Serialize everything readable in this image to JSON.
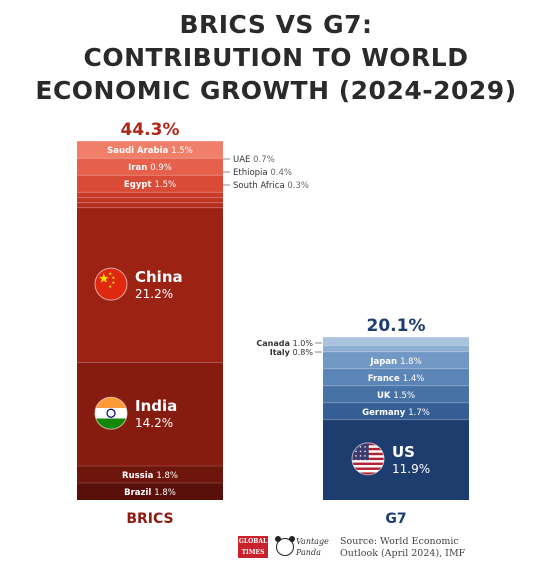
{
  "title_lines": [
    "BRICS VS G7:",
    "CONTRIBUTION TO WORLD",
    "ECONOMIC GROWTH (2024-2029)"
  ],
  "chart_data": {
    "type": "bar",
    "title": "BRICS VS G7: CONTRIBUTION TO WORLD ECONOMIC GROWTH (2024-2029)",
    "unit": "%",
    "stacked": true,
    "bars": [
      {
        "name": "BRICS",
        "total_label": "44.3%",
        "total": 44.3,
        "segments_top_to_bottom": [
          {
            "name": "Saudi Arabia",
            "value": 1.5,
            "label": "1.5%",
            "placement": "inside",
            "color": "#f07f6a"
          },
          {
            "name": "Iran",
            "value": 0.9,
            "label": "0.9%",
            "placement": "inside",
            "color": "#e6604b"
          },
          {
            "name": "Egypt",
            "value": 1.5,
            "label": "1.5%",
            "placement": "inside",
            "color": "#d94b36"
          },
          {
            "name": "UAE",
            "value": 0.7,
            "label": "0.7%",
            "placement": "outside",
            "color": "#c93a28"
          },
          {
            "name": "Ethiopia",
            "value": 0.4,
            "label": "0.4%",
            "placement": "outside",
            "color": "#bf3322"
          },
          {
            "name": "South Africa",
            "value": 0.3,
            "label": "0.3%",
            "placement": "outside",
            "color": "#b52d1e"
          },
          {
            "name": "China",
            "value": 21.2,
            "label": "21.2%",
            "placement": "inside",
            "flag": "china",
            "color": "#9c2214"
          },
          {
            "name": "India",
            "value": 14.2,
            "label": "14.2%",
            "placement": "inside",
            "flag": "india",
            "color": "#861b10"
          },
          {
            "name": "Russia",
            "value": 1.8,
            "label": "1.8%",
            "placement": "inside",
            "color": "#6e150c"
          },
          {
            "name": "Brazil",
            "value": 1.8,
            "label": "1.8%",
            "placement": "inside",
            "color": "#5a100a"
          }
        ]
      },
      {
        "name": "G7",
        "total_label": "20.1%",
        "total": 20.1,
        "segments_top_to_bottom": [
          {
            "name": "Canada",
            "value": 1.0,
            "label": "1.0%",
            "placement": "outside",
            "color": "#a9c3df"
          },
          {
            "name": "Italy",
            "value": 0.8,
            "label": "0.8%",
            "placement": "outside",
            "color": "#8fb0d4"
          },
          {
            "name": "Japan",
            "value": 1.8,
            "label": "1.8%",
            "placement": "inside",
            "color": "#7299c5"
          },
          {
            "name": "France",
            "value": 1.4,
            "label": "1.4%",
            "placement": "inside",
            "color": "#5b85b6"
          },
          {
            "name": "UK",
            "value": 1.5,
            "label": "1.5%",
            "placement": "inside",
            "color": "#4672a5"
          },
          {
            "name": "Germany",
            "value": 1.7,
            "label": "1.7%",
            "placement": "inside",
            "color": "#355f94"
          },
          {
            "name": "US",
            "value": 11.9,
            "label": "11.9%",
            "placement": "inside",
            "flag": "us",
            "color": "#1c3d6e"
          }
        ]
      }
    ],
    "colors": {
      "brics_total": "#b0281a",
      "g7_total": "#1c3d6e",
      "brics_category": "#8e1a10",
      "g7_category": "#1c3d6e"
    }
  },
  "footer": {
    "logo_gt": "GLOBAL TIMES",
    "logo_vp": "Vantage Panda",
    "source_line1": "Source: World Economic",
    "source_line2": "Outlook (April 2024), IMF"
  }
}
